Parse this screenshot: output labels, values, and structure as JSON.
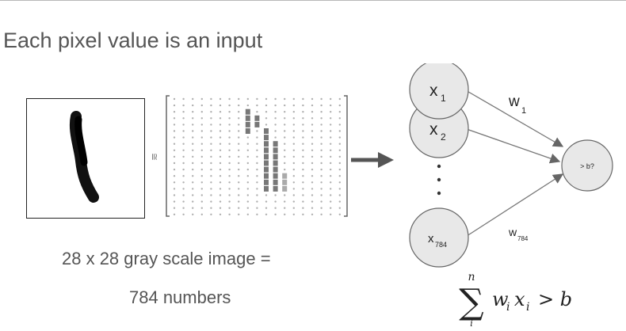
{
  "title": "Each pixel value is an input",
  "approx_symbol": "≅",
  "caption": {
    "line1": "28 x 28 gray scale image =",
    "line2": "784 numbers"
  },
  "neuron": {
    "inputs": [
      {
        "var": "x",
        "sub": "1"
      },
      {
        "var": "x",
        "sub": "2"
      },
      {
        "var": "x",
        "sub": "784"
      }
    ],
    "weights": [
      {
        "var": "w",
        "sub": "1"
      },
      {
        "var": "w",
        "sub": "784"
      }
    ],
    "output_label": "> b?"
  },
  "formula": {
    "sum_upper": "n",
    "sum_lower": "i",
    "sigma": "∑",
    "body": "w",
    "sub_i": "i",
    "x_var": "x",
    "tail": "> b"
  },
  "colors": {
    "text": "#555555",
    "node_fill": "#e8e8e8",
    "node_stroke": "#666666",
    "grid_dot": "#b0b0b0",
    "active_pixel": "#777777"
  }
}
